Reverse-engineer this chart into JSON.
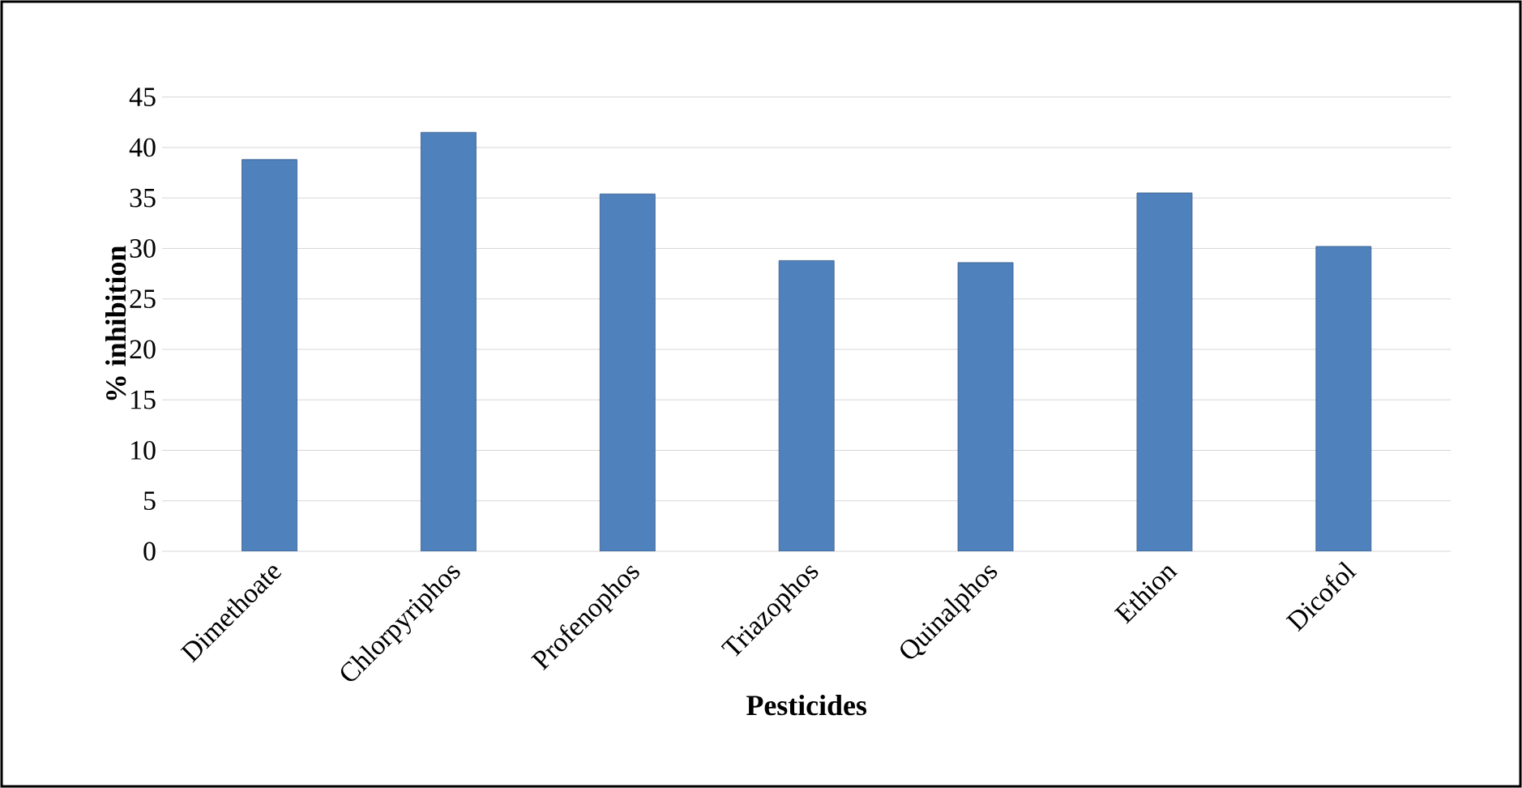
{
  "chart_data": {
    "type": "bar",
    "xlabel": "Pesticides",
    "ylabel": "% inhibition",
    "categories": [
      "Dimethoate",
      "Chlorpyriphos",
      "Profenophos",
      "Triazophos",
      "Quinalphos",
      "Ethion",
      "Dicofol"
    ],
    "values": [
      38.8,
      41.5,
      35.4,
      28.8,
      28.6,
      35.5,
      30.2
    ],
    "color": "#4f81bd",
    "ylim": [
      0,
      45
    ],
    "yticks": [
      0,
      5,
      10,
      15,
      20,
      25,
      30,
      35,
      40,
      45
    ],
    "grid": "y"
  }
}
